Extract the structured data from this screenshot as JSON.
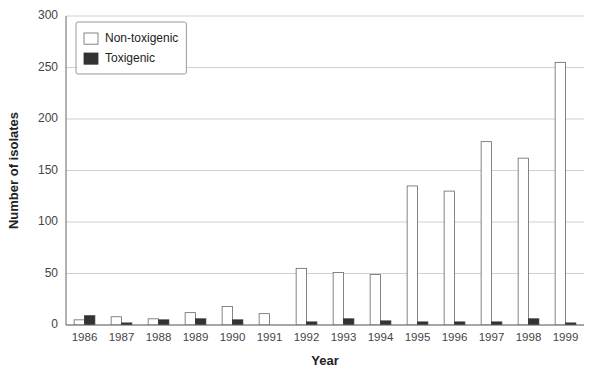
{
  "chart_data": {
    "type": "bar",
    "xlabel": "Year",
    "ylabel": "Number of isolates",
    "categories": [
      "1986",
      "1987",
      "1988",
      "1989",
      "1990",
      "1991",
      "1992",
      "1993",
      "1994",
      "1995",
      "1996",
      "1997",
      "1998",
      "1999"
    ],
    "series": [
      {
        "name": "Non-toxigenic",
        "color": "#ffffff",
        "values": [
          5,
          8,
          6,
          12,
          18,
          11,
          55,
          51,
          49,
          135,
          130,
          178,
          162,
          255
        ]
      },
      {
        "name": "Toxigenic",
        "color": "#333333",
        "values": [
          9,
          2,
          5,
          6,
          5,
          0,
          3,
          6,
          4,
          3,
          3,
          3,
          6,
          2
        ]
      }
    ],
    "ylim": [
      0,
      300
    ],
    "yticks": [
      0,
      50,
      100,
      150,
      200,
      250,
      300
    ],
    "grid": true,
    "legend": "upper-left"
  }
}
